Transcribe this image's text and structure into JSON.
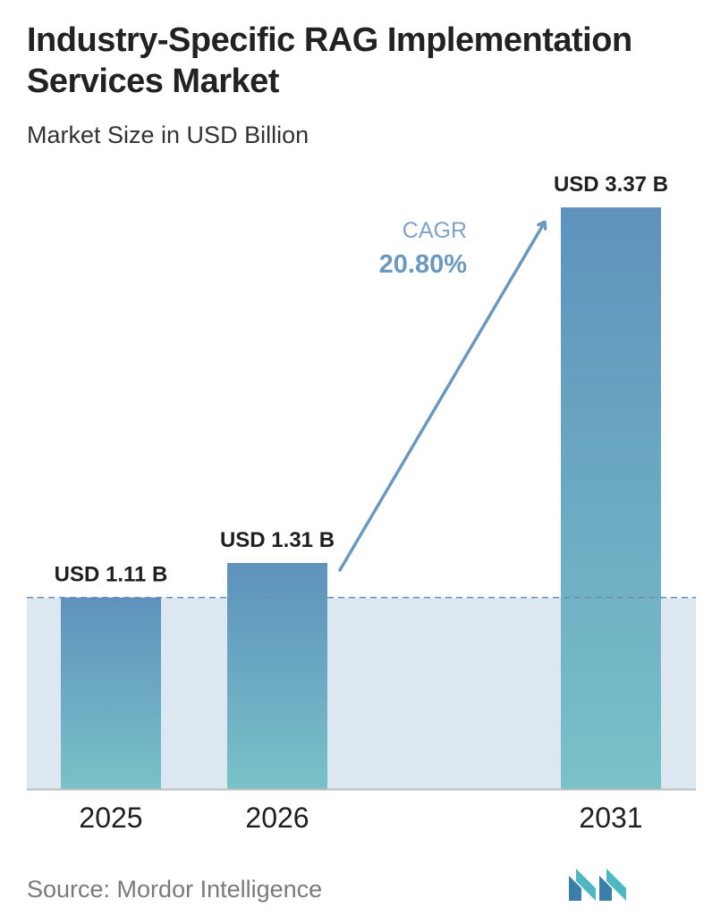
{
  "title": "Industry-Specific RAG Implementation Services Market",
  "subtitle": "Market Size in USD Billion",
  "source": "Source: Mordor Intelligence",
  "cagr": {
    "label": "CAGR",
    "value": "20.80%"
  },
  "colors": {
    "bar_top": "#5e92bd",
    "bar_bottom": "#79c2c8",
    "band": "#dde7f1",
    "reference_line": "#6b8fb3",
    "arrow": "#6b98bf",
    "cagr_label": "#7da4c6",
    "cagr_value": "#6b98bf",
    "logo_dark": "#3b7ea9",
    "logo_light": "#4fb7c4"
  },
  "chart_data": {
    "type": "bar",
    "title": "Industry-Specific RAG Implementation Services Market",
    "subtitle": "Market Size in USD Billion",
    "categories": [
      "2025",
      "2026",
      "2031"
    ],
    "values": [
      1.11,
      1.31,
      3.37
    ],
    "value_labels": [
      "USD 1.11 B",
      "USD 1.31 B",
      "USD 3.37 B"
    ],
    "ylim": [
      0,
      3.5
    ],
    "reference_line_value": 1.11,
    "grid": false,
    "legend": "none"
  }
}
